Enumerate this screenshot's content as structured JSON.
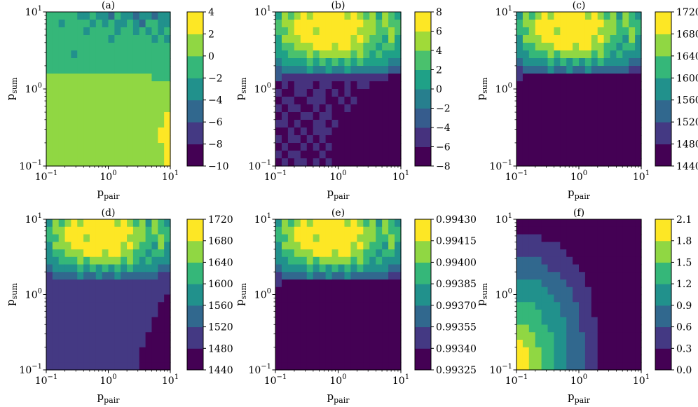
{
  "colormap": {
    "name": "viridis",
    "stops": [
      "#440154",
      "#472d7b",
      "#3b528b",
      "#2c728e",
      "#21918c",
      "#28ae80",
      "#5ec962",
      "#addc30",
      "#fde725"
    ]
  },
  "chart_data": [
    {
      "panel": "a",
      "type": "heatmap",
      "title": "(a)",
      "xlabel": "p",
      "xlabel_sub": "pair",
      "ylabel": "p",
      "ylabel_sub": "sum",
      "xscale": "log",
      "yscale": "log",
      "xlim": [
        0.1,
        10
      ],
      "ylim": [
        0.1,
        10
      ],
      "x_ticks": [
        {
          "value": 0.1,
          "base": "10",
          "exp": "−1"
        },
        {
          "value": 1,
          "base": "10",
          "exp": "0"
        },
        {
          "value": 10,
          "base": "10",
          "exp": "1"
        }
      ],
      "y_ticks": [
        {
          "value": 0.1,
          "base": "10",
          "exp": "−1"
        },
        {
          "value": 1,
          "base": "10",
          "exp": "0"
        },
        {
          "value": 10,
          "base": "10",
          "exp": "1"
        }
      ],
      "colorbar_range": [
        -10,
        4
      ],
      "colorbar_ticks": [
        {
          "value": 4,
          "label": "4"
        },
        {
          "value": 2,
          "label": "2"
        },
        {
          "value": 0,
          "label": "0"
        },
        {
          "value": -2,
          "label": "−2"
        },
        {
          "value": -4,
          "label": "−4"
        },
        {
          "value": -6,
          "label": "−6"
        },
        {
          "value": -8,
          "label": "−8"
        },
        {
          "value": -10,
          "label": "−10"
        }
      ],
      "colorbar_colors": [
        "#440154",
        "#443983",
        "#31688e",
        "#21918c",
        "#35b779",
        "#90d743",
        "#fde725"
      ],
      "grid_note": "approximate level index per cell, rows top (p_sum=10) to bottom (p_sum=0.1), columns left to right",
      "grid": [
        "44444334332433233233",
        "44344443434334324433",
        "44444434444344343434",
        "44444444443444444343",
        "44444444444444444444",
        "44443444444444444444",
        "44444444444444444444",
        "44444444444444444444",
        "55555555555555555444",
        "55555555555555555555",
        "55555555555555555555",
        "55555555555555555555",
        "55555555555555555555",
        "55555555555555555556",
        "55555555555555555556",
        "55555555555555555566",
        "55555555555555555566",
        "55555555555555555556",
        "55555555555555555556",
        "55555555555555555556"
      ]
    },
    {
      "panel": "b",
      "type": "heatmap",
      "title": "(b)",
      "xlabel": "p",
      "xlabel_sub": "pair",
      "ylabel": "p",
      "ylabel_sub": "sum",
      "xscale": "log",
      "yscale": "log",
      "xlim": [
        0.1,
        10
      ],
      "ylim": [
        0.1,
        10
      ],
      "x_ticks": [
        {
          "value": 0.1,
          "base": "10",
          "exp": "−1"
        },
        {
          "value": 1,
          "base": "10",
          "exp": "0"
        },
        {
          "value": 10,
          "base": "10",
          "exp": "1"
        }
      ],
      "y_ticks": [
        {
          "value": 0.1,
          "base": "10",
          "exp": "−1"
        },
        {
          "value": 1,
          "base": "10",
          "exp": "0"
        },
        {
          "value": 10,
          "base": "10",
          "exp": "1"
        }
      ],
      "colorbar_range": [
        -8,
        8
      ],
      "colorbar_ticks": [
        {
          "value": 8,
          "label": "8"
        },
        {
          "value": 6,
          "label": "6"
        },
        {
          "value": 4,
          "label": "4"
        },
        {
          "value": 2,
          "label": "2"
        },
        {
          "value": 0,
          "label": "0"
        },
        {
          "value": -2,
          "label": "−2"
        },
        {
          "value": -4,
          "label": "−4"
        },
        {
          "value": -6,
          "label": "−6"
        },
        {
          "value": -8,
          "label": "−8"
        }
      ],
      "colorbar_colors": [
        "#440154",
        "#46327e",
        "#365c8d",
        "#277f8e",
        "#1fa187",
        "#4ac16d",
        "#a0da39",
        "#fde725"
      ],
      "grid_note": "approximate level index per cell, rows top (p_sum=10) to bottom (p_sum=0.1)",
      "grid": [
        "46567677777676564654",
        "56677777777777665655",
        "55677767777776665565",
        "46667777777767655464",
        "45566677767766554554",
        "44555656666656545444",
        "34444545454545444433",
        "23333433433433333322",
        "21111111111111111100",
        "01011101100101100000",
        "10011011010100000000",
        "01100111001010000000",
        "10110010100100000000",
        "01001101100000000000",
        "11010011010000000000",
        "00101011100000000000",
        "10110101000000000000",
        "01001010100000000000",
        "10110001000000000000",
        "01011010100000000000"
      ]
    },
    {
      "panel": "c",
      "type": "heatmap",
      "title": "(c)",
      "xlabel": "p",
      "xlabel_sub": "pair",
      "ylabel": "p",
      "ylabel_sub": "sum",
      "xscale": "log",
      "yscale": "log",
      "xlim": [
        0.1,
        10
      ],
      "ylim": [
        0.1,
        10
      ],
      "x_ticks": [
        {
          "value": 0.1,
          "base": "10",
          "exp": "−1"
        },
        {
          "value": 1,
          "base": "10",
          "exp": "0"
        },
        {
          "value": 10,
          "base": "10",
          "exp": "1"
        }
      ],
      "y_ticks": [
        {
          "value": 0.1,
          "base": "10",
          "exp": "−1"
        },
        {
          "value": 1,
          "base": "10",
          "exp": "0"
        },
        {
          "value": 10,
          "base": "10",
          "exp": "1"
        }
      ],
      "colorbar_range": [
        1440,
        1720
      ],
      "colorbar_ticks": [
        {
          "value": 1720,
          "label": "1720"
        },
        {
          "value": 1680,
          "label": "1680"
        },
        {
          "value": 1640,
          "label": "1640"
        },
        {
          "value": 1600,
          "label": "1600"
        },
        {
          "value": 1560,
          "label": "1560"
        },
        {
          "value": 1520,
          "label": "1520"
        },
        {
          "value": 1480,
          "label": "1480"
        },
        {
          "value": 1440,
          "label": "1440"
        }
      ],
      "colorbar_colors": [
        "#440154",
        "#443983",
        "#31688e",
        "#21918c",
        "#35b779",
        "#90d743",
        "#fde725"
      ],
      "grid_note": "approximate level index per cell, rows top (p_sum=10) to bottom (p_sum=0.1)",
      "grid": [
        "35456566666565453543",
        "45566666666666554544",
        "44566656666665554454",
        "35556666666656544353",
        "34455566656655443443",
        "33444545555545434333",
        "23333434343434333322",
        "12222322322322222211",
        "10000000000000000000",
        "00000000000000000000",
        "00000000000000000000",
        "00000000000000000000",
        "00000000000000000000",
        "00000000000000000000",
        "00000000000000000000",
        "00000000000000000000",
        "00000000000000000000",
        "00000000000000000000",
        "00000000000000000000",
        "00000000000000000000"
      ]
    },
    {
      "panel": "d",
      "type": "heatmap",
      "title": "(d)",
      "xlabel": "p",
      "xlabel_sub": "pair",
      "ylabel": "p",
      "ylabel_sub": "sum",
      "xscale": "log",
      "yscale": "log",
      "xlim": [
        0.1,
        10
      ],
      "ylim": [
        0.1,
        10
      ],
      "x_ticks": [
        {
          "value": 0.1,
          "base": "10",
          "exp": "−1"
        },
        {
          "value": 1,
          "base": "10",
          "exp": "0"
        },
        {
          "value": 10,
          "base": "10",
          "exp": "1"
        }
      ],
      "y_ticks": [
        {
          "value": 0.1,
          "base": "10",
          "exp": "−1"
        },
        {
          "value": 1,
          "base": "10",
          "exp": "0"
        },
        {
          "value": 10,
          "base": "10",
          "exp": "1"
        }
      ],
      "colorbar_range": [
        1440,
        1720
      ],
      "colorbar_ticks": [
        {
          "value": 1720,
          "label": "1720"
        },
        {
          "value": 1680,
          "label": "1680"
        },
        {
          "value": 1640,
          "label": "1640"
        },
        {
          "value": 1600,
          "label": "1600"
        },
        {
          "value": 1560,
          "label": "1560"
        },
        {
          "value": 1520,
          "label": "1520"
        },
        {
          "value": 1480,
          "label": "1480"
        },
        {
          "value": 1440,
          "label": "1440"
        }
      ],
      "colorbar_colors": [
        "#440154",
        "#443983",
        "#31688e",
        "#21918c",
        "#35b779",
        "#90d743",
        "#fde725"
      ],
      "grid_note": "approximate level index per cell, rows top (p_sum=10) to bottom (p_sum=0.1)",
      "grid": [
        "35456566666565453543",
        "45566666666666554544",
        "44566656666665554454",
        "35556666666656544353",
        "34455566656655443443",
        "33444545555545434333",
        "23333434343434333322",
        "12222322322322222211",
        "11111111111111111111",
        "11111111111111111111",
        "11111111111111111110",
        "11111111111111111100",
        "11111111111111111100",
        "11111111111111111000",
        "11111111111111111000",
        "11111111111111110000",
        "11111111111111110000",
        "11111111111111100000",
        "11111111111111100000",
        "11111111111111100000"
      ]
    },
    {
      "panel": "e",
      "type": "heatmap",
      "title": "(e)",
      "xlabel": "p",
      "xlabel_sub": "pair",
      "ylabel": "p",
      "ylabel_sub": "sum",
      "xscale": "log",
      "yscale": "log",
      "xlim": [
        0.1,
        10
      ],
      "ylim": [
        0.1,
        10
      ],
      "x_ticks": [
        {
          "value": 0.1,
          "base": "10",
          "exp": "−1"
        },
        {
          "value": 1,
          "base": "10",
          "exp": "0"
        },
        {
          "value": 10,
          "base": "10",
          "exp": "1"
        }
      ],
      "y_ticks": [
        {
          "value": 0.1,
          "base": "10",
          "exp": "−1"
        },
        {
          "value": 1,
          "base": "10",
          "exp": "0"
        },
        {
          "value": 10,
          "base": "10",
          "exp": "1"
        }
      ],
      "colorbar_range": [
        0.99325,
        0.9943
      ],
      "colorbar_ticks": [
        {
          "value": 0.9943,
          "label": "0.99430"
        },
        {
          "value": 0.99415,
          "label": "0.99415"
        },
        {
          "value": 0.994,
          "label": "0.99400"
        },
        {
          "value": 0.99385,
          "label": "0.99385"
        },
        {
          "value": 0.9937,
          "label": "0.99370"
        },
        {
          "value": 0.99355,
          "label": "0.99355"
        },
        {
          "value": 0.9934,
          "label": "0.99340"
        },
        {
          "value": 0.99325,
          "label": "0.99325"
        }
      ],
      "colorbar_colors": [
        "#440154",
        "#443983",
        "#31688e",
        "#21918c",
        "#35b779",
        "#90d743",
        "#fde725"
      ],
      "grid_note": "approximate level index per cell, rows top (p_sum=10) to bottom (p_sum=0.1)",
      "grid": [
        "35456566666565453543",
        "45566666666666554544",
        "44566656666665554454",
        "35556666666656544353",
        "34455566656655443443",
        "33444545555545434333",
        "23333434343434333322",
        "12222322322322222211",
        "10000000000000000000",
        "00000000000000000000",
        "00000000000000000000",
        "00000000000000000000",
        "00000000000000000000",
        "00000000000000000000",
        "00000000000000000000",
        "00000000000000000000",
        "00000000000000000000",
        "00000000000000000000",
        "00000000000000000000",
        "00000000000000000000"
      ]
    },
    {
      "panel": "f",
      "type": "heatmap",
      "title": "(f)",
      "xlabel": "p",
      "xlabel_sub": "pair",
      "ylabel": "p",
      "ylabel_sub": "sum",
      "xscale": "log",
      "yscale": "log",
      "xlim": [
        0.1,
        10
      ],
      "ylim": [
        0.1,
        10
      ],
      "x_ticks": [
        {
          "value": 0.1,
          "base": "10",
          "exp": "−1"
        },
        {
          "value": 1,
          "base": "10",
          "exp": "0"
        },
        {
          "value": 10,
          "base": "10",
          "exp": "1"
        }
      ],
      "y_ticks": [
        {
          "value": 0.1,
          "base": "10",
          "exp": "−1"
        },
        {
          "value": 1,
          "base": "10",
          "exp": "0"
        },
        {
          "value": 10,
          "base": "10",
          "exp": "1"
        }
      ],
      "colorbar_range": [
        0.0,
        2.1
      ],
      "colorbar_ticks": [
        {
          "value": 2.1,
          "label": "2.1"
        },
        {
          "value": 1.8,
          "label": "1.8"
        },
        {
          "value": 1.5,
          "label": "1.5"
        },
        {
          "value": 1.2,
          "label": "1.2"
        },
        {
          "value": 0.9,
          "label": "0.9"
        },
        {
          "value": 0.6,
          "label": "0.6"
        },
        {
          "value": 0.3,
          "label": "0.3"
        },
        {
          "value": 0.0,
          "label": "0.0"
        }
      ],
      "colorbar_colors": [
        "#440154",
        "#443983",
        "#31688e",
        "#21918c",
        "#35b779",
        "#90d743",
        "#fde725"
      ],
      "grid_note": "approximate level index per cell, rows top (p_sum=10) to bottom (p_sum=0.1)",
      "grid": [
        "00000000000000000000",
        "00000000000000000000",
        "11110000000000000000",
        "11111110000000000000",
        "11111111000000000000",
        "22221111100000000000",
        "22222111110000000000",
        "22222221111000000000",
        "33332222111000000000",
        "33333222211100000000",
        "33333322211100000000",
        "44433332221100000000",
        "44443332221100000000",
        "44443333221110000000",
        "55444333221110000000",
        "55544433222110000000",
        "65544433222110000000",
        "66554433222110000000",
        "66554433222110000000",
        "66554433222110000000"
      ]
    }
  ]
}
